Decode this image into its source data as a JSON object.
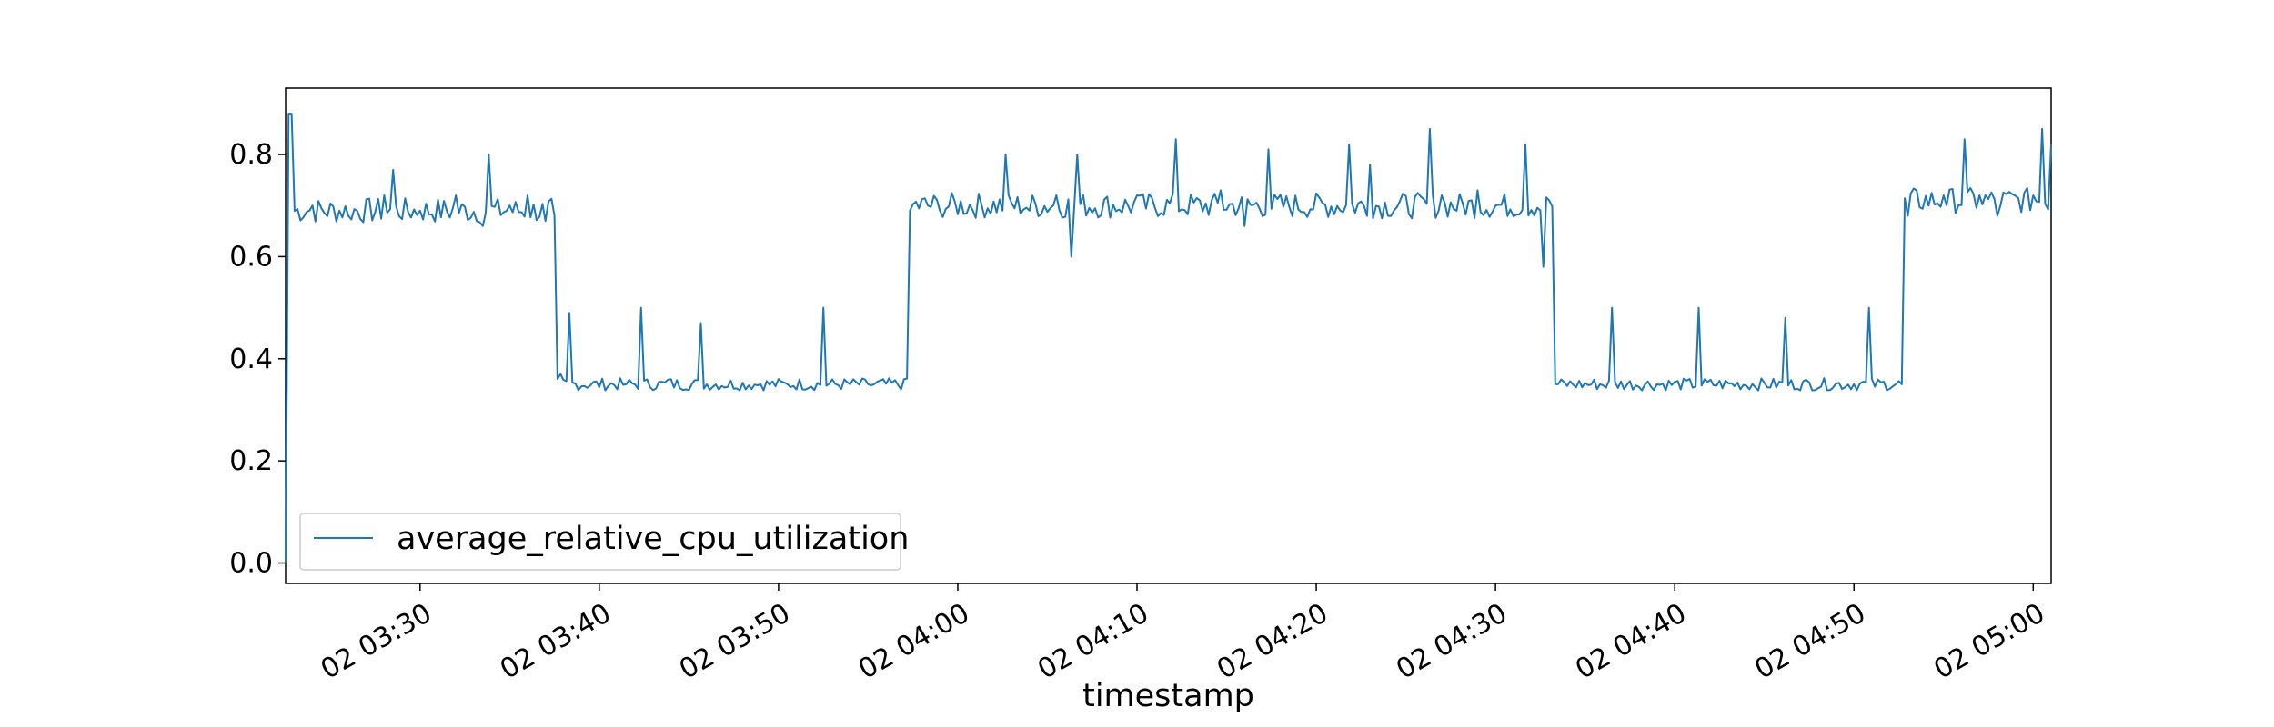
{
  "chart_data": {
    "type": "line",
    "title": "",
    "xlabel": "timestamp",
    "ylabel": "",
    "xlim": [
      "02 03:22:30",
      "02 05:01:00"
    ],
    "ylim": [
      -0.04,
      0.93
    ],
    "x_ticks": [
      "02 03:30",
      "02 03:40",
      "02 03:50",
      "02 04:00",
      "02 04:10",
      "02 04:20",
      "02 04:30",
      "02 04:40",
      "02 04:50",
      "02 05:00"
    ],
    "y_ticks": [
      "0.0",
      "0.2",
      "0.4",
      "0.6",
      "0.8"
    ],
    "grid": false,
    "legend_position": "lower-left",
    "series": [
      {
        "name": "average_relative_cpu_utilization",
        "color": "#1f77b4",
        "x_start": "02 03:22:30",
        "x_step_seconds": 10,
        "segments": [
          {
            "from": "02 03:22:30",
            "to": "02 03:37:30",
            "level": 0.69
          },
          {
            "from": "02 03:37:40",
            "to": "02 03:57:10",
            "level": 0.35
          },
          {
            "from": "02 03:57:20",
            "to": "02 04:33:10",
            "level": 0.7
          },
          {
            "from": "02 04:33:20",
            "to": "02 04:52:40",
            "level": 0.35
          },
          {
            "from": "02 04:52:50",
            "to": "02 05:01:00",
            "level": 0.71
          }
        ],
        "points": [
          [
            "02 03:22:30",
            0.0
          ],
          [
            "02 03:22:40",
            0.88
          ],
          [
            "02 03:22:50",
            0.88
          ],
          [
            "02 03:24:00",
            0.7
          ],
          [
            "02 03:26:00",
            0.68
          ],
          [
            "02 03:28:00",
            0.72
          ],
          [
            "02 03:28:30",
            0.77
          ],
          [
            "02 03:30:00",
            0.69
          ],
          [
            "02 03:32:00",
            0.72
          ],
          [
            "02 03:33:30",
            0.66
          ],
          [
            "02 03:33:50",
            0.8
          ],
          [
            "02 03:35:00",
            0.7
          ],
          [
            "02 03:36:00",
            0.72
          ],
          [
            "02 03:37:00",
            0.67
          ],
          [
            "02 03:37:30",
            0.68
          ],
          [
            "02 03:37:50",
            0.37
          ],
          [
            "02 03:38:20",
            0.49
          ],
          [
            "02 03:41:30",
            0.35
          ],
          [
            "02 03:42:20",
            0.5
          ],
          [
            "02 03:44:00",
            0.36
          ],
          [
            "02 03:45:40",
            0.47
          ],
          [
            "02 03:49:00",
            0.35
          ],
          [
            "02 03:49:00",
            0.35
          ],
          [
            "02 03:50:30",
            0.35
          ],
          [
            "02 03:52:30",
            0.5
          ],
          [
            "02 03:55:00",
            0.35
          ],
          [
            "02 03:57:00",
            0.36
          ],
          [
            "02 03:57:20",
            0.69
          ],
          [
            "02 03:59:00",
            0.69
          ],
          [
            "02 04:02:40",
            0.8
          ],
          [
            "02 04:04:00",
            0.69
          ],
          [
            "02 04:05:30",
            0.72
          ],
          [
            "02 04:06:20",
            0.6
          ],
          [
            "02 04:06:40",
            0.8
          ],
          [
            "02 04:10:00",
            0.72
          ],
          [
            "02 04:12:10",
            0.83
          ],
          [
            "02 04:14:40",
            0.73
          ],
          [
            "02 04:16:00",
            0.66
          ],
          [
            "02 04:17:20",
            0.81
          ],
          [
            "02 04:21:50",
            0.82
          ],
          [
            "02 04:23:00",
            0.78
          ],
          [
            "02 04:26:20",
            0.85
          ],
          [
            "02 04:27:00",
            0.72
          ],
          [
            "02 04:29:00",
            0.73
          ],
          [
            "02 04:31:40",
            0.82
          ],
          [
            "02 04:32:40",
            0.58
          ],
          [
            "02 04:33:00",
            0.71
          ],
          [
            "02 04:33:20",
            0.35
          ],
          [
            "02 04:36:30",
            0.5
          ],
          [
            "02 04:41:20",
            0.5
          ],
          [
            "02 04:46:10",
            0.48
          ],
          [
            "02 04:50:50",
            0.5
          ],
          [
            "02 04:52:40",
            0.35
          ],
          [
            "02 04:53:00",
            0.68
          ],
          [
            "02 04:55:00",
            0.72
          ],
          [
            "02 04:56:10",
            0.83
          ],
          [
            "02 04:57:00",
            0.72
          ],
          [
            "02 04:58:00",
            0.68
          ],
          [
            "02 05:00:00",
            0.72
          ],
          [
            "02 05:00:30",
            0.85
          ],
          [
            "02 05:01:00",
            0.82
          ]
        ]
      }
    ]
  }
}
